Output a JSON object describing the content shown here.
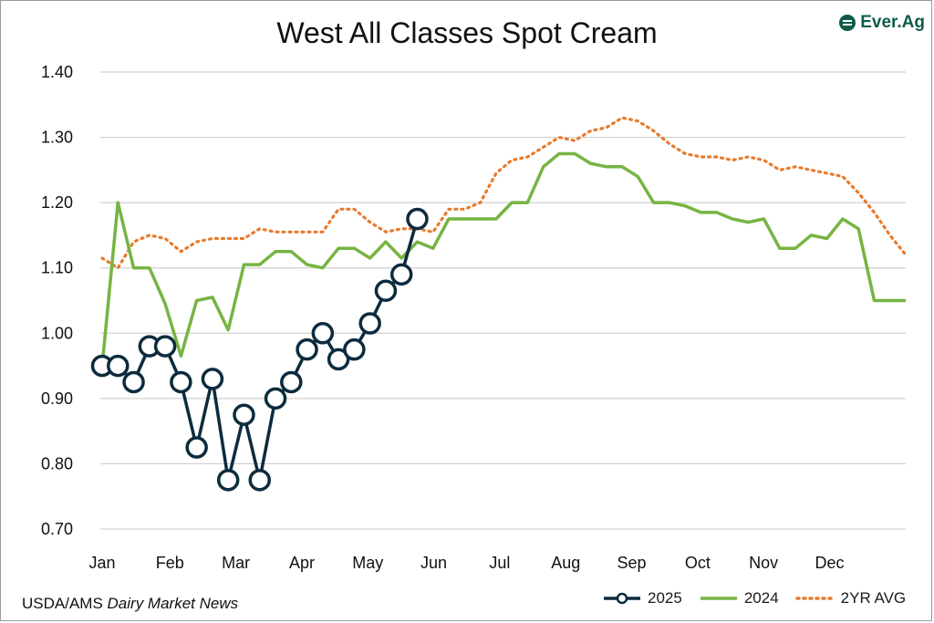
{
  "header": {
    "title": "West All Classes Spot Cream",
    "brand": "Ever.Ag"
  },
  "footer": {
    "source_prefix": "USDA/AMS ",
    "source_italic": "Dairy Market News"
  },
  "chart_data": {
    "type": "line",
    "title": "West All Classes Spot Cream",
    "xlabel": "",
    "ylabel": "",
    "ylim": [
      0.7,
      1.4
    ],
    "y_ticks": [
      "0.70",
      "0.80",
      "0.90",
      "1.00",
      "1.10",
      "1.20",
      "1.30",
      "1.40"
    ],
    "x_ticks": [
      "Jan",
      "Feb",
      "Mar",
      "Apr",
      "May",
      "Jun",
      "Jul",
      "Aug",
      "Sep",
      "Oct",
      "Nov",
      "Dec"
    ],
    "x_range_weeks": [
      1,
      52
    ],
    "grid": "horizontal",
    "legend_position": "bottom-right",
    "series": [
      {
        "name": "2025",
        "color": "#0d2b3e",
        "style": "line-with-markers",
        "week": [
          1,
          2,
          3,
          4,
          5,
          6,
          7,
          8,
          9,
          10,
          11,
          12,
          13,
          14,
          15,
          16,
          17,
          18,
          19,
          20,
          21
        ],
        "values": [
          0.95,
          0.95,
          0.925,
          0.98,
          0.98,
          0.925,
          0.825,
          0.93,
          0.775,
          0.875,
          0.775,
          0.9,
          0.925,
          0.975,
          1.0,
          0.96,
          0.975,
          1.015,
          1.065,
          1.09,
          1.175
        ]
      },
      {
        "name": "2024",
        "color": "#76b443",
        "style": "solid",
        "week": [
          1,
          2,
          3,
          4,
          5,
          6,
          7,
          8,
          9,
          10,
          11,
          12,
          13,
          14,
          15,
          16,
          17,
          18,
          19,
          20,
          21,
          22,
          23,
          24,
          25,
          26,
          27,
          28,
          29,
          30,
          31,
          32,
          33,
          34,
          35,
          36,
          37,
          38,
          39,
          40,
          41,
          42,
          43,
          44,
          45,
          46,
          47,
          48,
          49,
          50,
          51,
          52
        ],
        "values": [
          0.95,
          1.2,
          1.1,
          1.1,
          1.045,
          0.965,
          1.05,
          1.055,
          1.005,
          1.105,
          1.105,
          1.125,
          1.125,
          1.105,
          1.1,
          1.13,
          1.13,
          1.115,
          1.14,
          1.115,
          1.14,
          1.13,
          1.175,
          1.175,
          1.175,
          1.175,
          1.2,
          1.2,
          1.255,
          1.275,
          1.275,
          1.26,
          1.255,
          1.255,
          1.24,
          1.2,
          1.2,
          1.195,
          1.185,
          1.185,
          1.175,
          1.17,
          1.175,
          1.13,
          1.13,
          1.15,
          1.145,
          1.175,
          1.16,
          1.05,
          1.05,
          1.05
        ]
      },
      {
        "name": "2YR AVG",
        "color": "#e87b2d",
        "style": "dotted",
        "week": [
          1,
          2,
          3,
          4,
          5,
          6,
          7,
          8,
          9,
          10,
          11,
          12,
          13,
          14,
          15,
          16,
          17,
          18,
          19,
          20,
          21,
          22,
          23,
          24,
          25,
          26,
          27,
          28,
          29,
          30,
          31,
          32,
          33,
          34,
          35,
          36,
          37,
          38,
          39,
          40,
          41,
          42,
          43,
          44,
          45,
          46,
          47,
          48,
          49,
          50,
          51,
          52
        ],
        "values": [
          1.115,
          1.1,
          1.14,
          1.15,
          1.145,
          1.125,
          1.14,
          1.145,
          1.145,
          1.145,
          1.16,
          1.155,
          1.155,
          1.155,
          1.155,
          1.19,
          1.19,
          1.17,
          1.155,
          1.16,
          1.16,
          1.155,
          1.19,
          1.19,
          1.2,
          1.245,
          1.265,
          1.27,
          1.285,
          1.3,
          1.295,
          1.31,
          1.315,
          1.33,
          1.325,
          1.31,
          1.29,
          1.275,
          1.27,
          1.27,
          1.265,
          1.27,
          1.265,
          1.25,
          1.255,
          1.25,
          1.245,
          1.24,
          1.215,
          1.185,
          1.15,
          1.12
        ]
      }
    ]
  }
}
